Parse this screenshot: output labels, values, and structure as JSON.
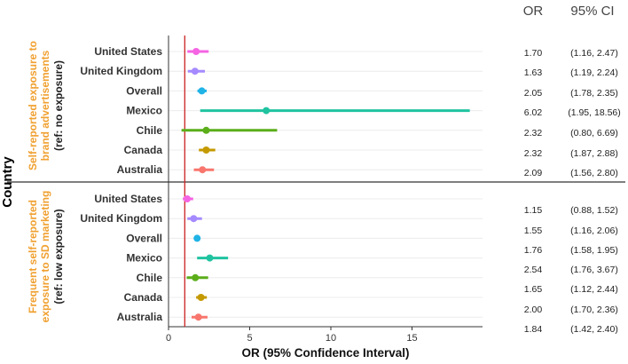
{
  "chart_data": {
    "type": "forest",
    "xlabel": "OR (95% Confidence Interval)",
    "ylabel": "Country",
    "xlim": [
      0,
      19
    ],
    "xticks": [
      0,
      5,
      10,
      15
    ],
    "reference_line": 1,
    "columns": {
      "or": "OR",
      "ci": "95% CI"
    },
    "panels": [
      {
        "title_line1": "Self-reported exposure to",
        "title_line2": "brand advertisements",
        "ref": "(ref: no exposure)",
        "rows": [
          {
            "country": "United States",
            "or": 1.7,
            "lo": 1.16,
            "hi": 2.47,
            "or_label": "1.70",
            "ci_label": "(1.16, 2.47)"
          },
          {
            "country": "United Kingdom",
            "or": 1.63,
            "lo": 1.19,
            "hi": 2.24,
            "or_label": "1.63",
            "ci_label": "(1.19, 2.24)"
          },
          {
            "country": "Overall",
            "or": 2.05,
            "lo": 1.78,
            "hi": 2.35,
            "or_label": "2.05",
            "ci_label": "(1.78, 2.35)"
          },
          {
            "country": "Mexico",
            "or": 6.02,
            "lo": 1.95,
            "hi": 18.56,
            "or_label": "6.02",
            "ci_label": "(1.95, 18.56)"
          },
          {
            "country": "Chile",
            "or": 2.32,
            "lo": 0.8,
            "hi": 6.69,
            "or_label": "2.32",
            "ci_label": "(0.80, 6.69)"
          },
          {
            "country": "Canada",
            "or": 2.32,
            "lo": 1.87,
            "hi": 2.88,
            "or_label": "2.32",
            "ci_label": "(1.87, 2.88)"
          },
          {
            "country": "Australia",
            "or": 2.09,
            "lo": 1.56,
            "hi": 2.8,
            "or_label": "2.09",
            "ci_label": "(1.56, 2.80)"
          }
        ]
      },
      {
        "title_line1": "Frequent self-reported",
        "title_line2": "exposure to SD marketing",
        "ref": "(ref: low exposure)",
        "rows": [
          {
            "country": "United States",
            "or": 1.15,
            "lo": 0.88,
            "hi": 1.52,
            "or_label": "1.15",
            "ci_label": "(0.88, 1.52)"
          },
          {
            "country": "United Kingdom",
            "or": 1.55,
            "lo": 1.16,
            "hi": 2.06,
            "or_label": "1.55",
            "ci_label": "(1.16, 2.06)"
          },
          {
            "country": "Overall",
            "or": 1.76,
            "lo": 1.58,
            "hi": 1.95,
            "or_label": "1.76",
            "ci_label": "(1.58, 1.95)"
          },
          {
            "country": "Mexico",
            "or": 2.54,
            "lo": 1.76,
            "hi": 3.67,
            "or_label": "2.54",
            "ci_label": "(1.76, 3.67)"
          },
          {
            "country": "Chile",
            "or": 1.65,
            "lo": 1.12,
            "hi": 2.44,
            "or_label": "1.65",
            "ci_label": "(1.12, 2.44)"
          },
          {
            "country": "Canada",
            "or": 2.0,
            "lo": 1.7,
            "hi": 2.36,
            "or_label": "2.00",
            "ci_label": "(1.70, 2.36)"
          },
          {
            "country": "Australia",
            "or": 1.84,
            "lo": 1.42,
            "hi": 2.4,
            "or_label": "1.84",
            "ci_label": "(1.42, 2.40)"
          }
        ]
      }
    ],
    "colors": {
      "United States": "#f564e3",
      "United Kingdom": "#a58aff",
      "Overall": "#1fb3e6",
      "Mexico": "#1fc3a0",
      "Chile": "#5bae1a",
      "Canada": "#c49a00",
      "Australia": "#f8766d"
    },
    "reference_line_color": "#cc2222",
    "panel_title_color": "#f0a030"
  }
}
